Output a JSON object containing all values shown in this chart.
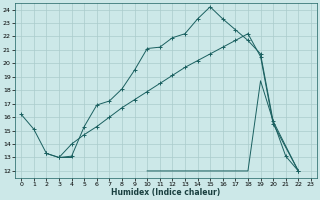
{
  "xlabel": "Humidex (Indice chaleur)",
  "bg_color": "#cce8e8",
  "grid_color": "#aacccc",
  "line_color": "#1a6060",
  "xlim": [
    -0.5,
    23.5
  ],
  "ylim": [
    11.5,
    24.5
  ],
  "yticks": [
    12,
    13,
    14,
    15,
    16,
    17,
    18,
    19,
    20,
    21,
    22,
    23,
    24
  ],
  "xticks": [
    0,
    1,
    2,
    3,
    4,
    5,
    6,
    7,
    8,
    9,
    10,
    11,
    12,
    13,
    14,
    15,
    16,
    17,
    18,
    19,
    20,
    21,
    22,
    23
  ],
  "line1_x": [
    0,
    1,
    2,
    3,
    4,
    5,
    6,
    7,
    8,
    9,
    10,
    11,
    12,
    13,
    14,
    15,
    16,
    17,
    18,
    19,
    20,
    21,
    22
  ],
  "line1_y": [
    16.2,
    15.1,
    13.3,
    13.0,
    13.1,
    15.3,
    16.9,
    17.2,
    18.1,
    19.5,
    21.1,
    21.2,
    21.9,
    22.2,
    23.3,
    24.2,
    23.3,
    22.5,
    21.7,
    20.7,
    15.7,
    13.1,
    12.0
  ],
  "line2_x": [
    2,
    3,
    4,
    5,
    6,
    7,
    8,
    9,
    10,
    11,
    12,
    13,
    14,
    15,
    16,
    17,
    18,
    19,
    20,
    22
  ],
  "line2_y": [
    13.3,
    13.0,
    14.0,
    14.7,
    15.3,
    16.0,
    16.7,
    17.3,
    17.9,
    18.5,
    19.1,
    19.7,
    20.2,
    20.7,
    21.2,
    21.7,
    22.2,
    20.5,
    15.5,
    12.0
  ],
  "line3_x": [
    3,
    4,
    10,
    11,
    12,
    13,
    14,
    15,
    16,
    17,
    18,
    19,
    20,
    22
  ],
  "line3_y": [
    13.0,
    13.0,
    12.0,
    12.0,
    12.0,
    12.0,
    12.0,
    12.0,
    12.0,
    12.0,
    12.0,
    18.7,
    15.7,
    12.0
  ],
  "line3_segments": [
    [
      0,
      5
    ],
    [
      5,
      13
    ]
  ]
}
